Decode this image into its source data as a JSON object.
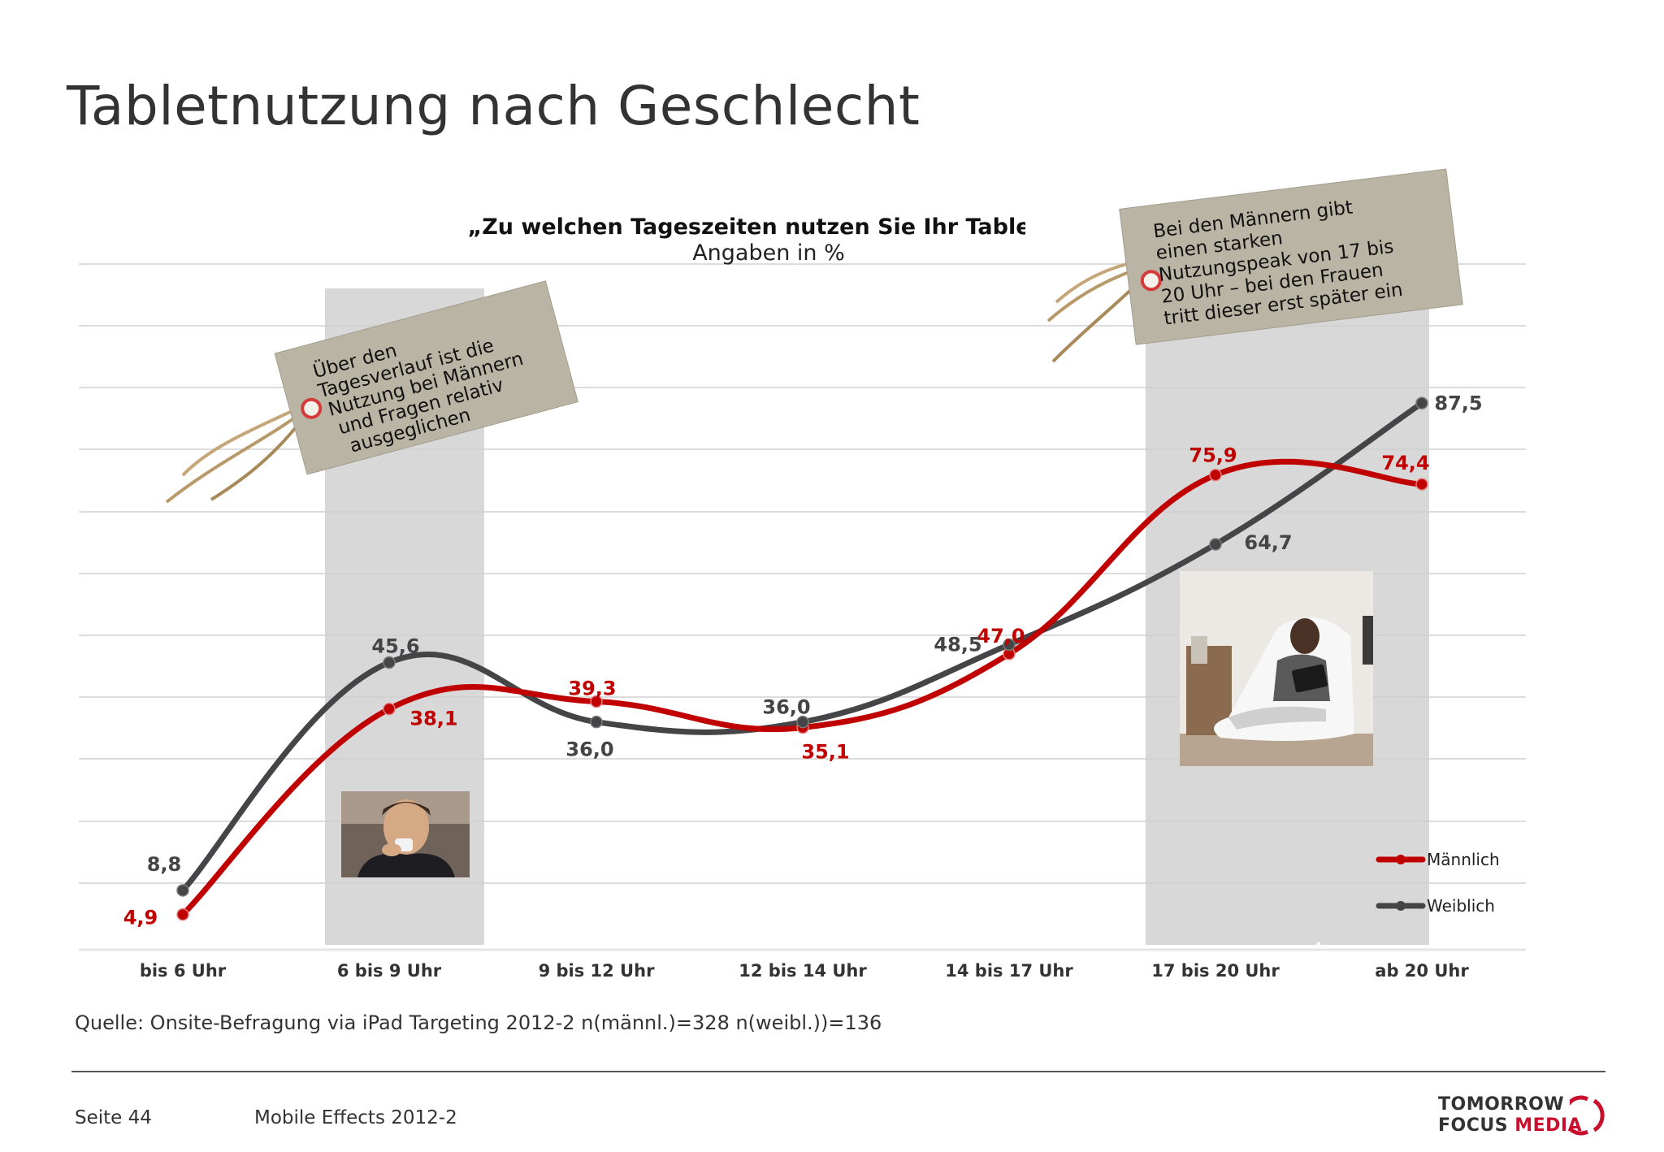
{
  "title": "Tabletnutzung nach Geschlecht",
  "chart_data": {
    "type": "line",
    "title": "„Zu welchen Tageszeiten nutzen Sie Ihr Table",
    "subtitle": "Angaben in %",
    "categories": [
      "bis 6 Uhr",
      "6 bis 9 Uhr",
      "9 bis 12 Uhr",
      "12 bis 14 Uhr",
      "14 bis 17 Uhr",
      "17 bis 20 Uhr",
      "ab 20 Uhr"
    ],
    "series": [
      {
        "name": "Männlich",
        "values": [
          4.9,
          38.1,
          39.3,
          35.1,
          47.0,
          75.9,
          74.4
        ],
        "labels": [
          "4,9",
          "38,1",
          "39,3",
          "35,1",
          "47,0",
          "75,9",
          "74,4"
        ],
        "color": "#c00000"
      },
      {
        "name": "Weiblich",
        "values": [
          8.8,
          45.6,
          36.0,
          36.0,
          48.5,
          64.7,
          87.5
        ],
        "labels": [
          "8,8",
          "45,6",
          "36,0",
          "36,0",
          "48,5",
          "64,7",
          "87,5"
        ],
        "color": "#454547"
      }
    ],
    "ylim": [
      0,
      100
    ],
    "grid": true,
    "legend": "bottom-right",
    "highlighted_categories": [
      "6 bis 9 Uhr",
      "17 bis 20 Uhr",
      "ab 20 Uhr"
    ],
    "annotations": [
      {
        "lines": [
          "Über den",
          "Tagesverlauf ist die",
          "Nutzung bei Männern",
          "und Fragen relativ",
          "ausgeglichen"
        ]
      },
      {
        "lines": [
          "Bei den Männern gibt",
          "einen starken",
          "Nutzungspeak von 17 bis",
          "20 Uhr – bei den Frauen",
          "tritt dieser erst später ein"
        ]
      }
    ]
  },
  "source": "Quelle: Onsite-Befragung via iPad Targeting 2012-2 n(männl.)=328 n(weibl.))=136",
  "footer": {
    "page": "Seite 44",
    "report": "Mobile Effects 2012-2",
    "logo": {
      "line1": "TOMORROW",
      "line2_a": "FOCUS ",
      "line2_b": "MEDIA",
      "accent": "#c8102e"
    }
  },
  "colors": {
    "highlight_band": "#d9d8d9",
    "grid": "#d0d0d0",
    "tag": "#bab4a4",
    "tag_eyelet": "#d43a3a",
    "string": "#b89a6a"
  }
}
